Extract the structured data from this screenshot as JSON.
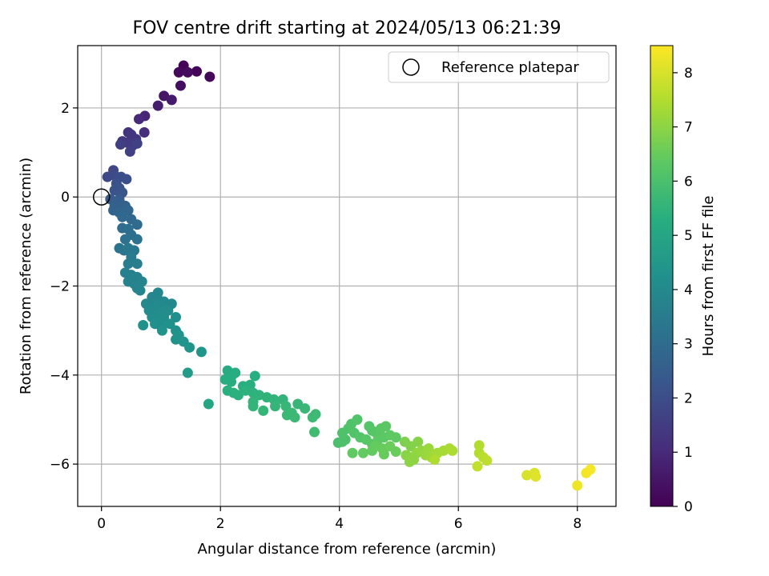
{
  "chart_data": {
    "type": "scatter",
    "title": "FOV centre drift starting at 2024/05/13 06:21:39",
    "xlabel": "Angular distance from reference (arcmin)",
    "ylabel": "Rotation from reference (arcmin)",
    "xlim": [
      -0.4,
      8.65
    ],
    "ylim": [
      -6.95,
      3.4
    ],
    "xticks": [
      0,
      2,
      4,
      6,
      8
    ],
    "yticks": [
      -6,
      -4,
      -2,
      0,
      2
    ],
    "grid": true,
    "legend": {
      "placement": "top-right",
      "entries": [
        "Reference platepar"
      ]
    },
    "reference_point": {
      "x": 0,
      "y": 0,
      "marker": "open-circle"
    },
    "colorbar": {
      "label": "Hours from first FF file",
      "colormap": "viridis",
      "range": [
        0,
        8.5
      ],
      "ticks": [
        0,
        1,
        2,
        3,
        4,
        5,
        6,
        7,
        8
      ]
    },
    "points": [
      {
        "x": 1.38,
        "y": 2.95,
        "c": 0.05
      },
      {
        "x": 1.6,
        "y": 2.82,
        "c": 0.1
      },
      {
        "x": 1.82,
        "y": 2.7,
        "c": 0.15
      },
      {
        "x": 1.3,
        "y": 2.8,
        "c": 0.2
      },
      {
        "x": 1.45,
        "y": 2.8,
        "c": 0.25
      },
      {
        "x": 1.33,
        "y": 2.5,
        "c": 0.3
      },
      {
        "x": 1.05,
        "y": 2.27,
        "c": 0.5
      },
      {
        "x": 1.18,
        "y": 2.18,
        "c": 0.6
      },
      {
        "x": 0.95,
        "y": 2.05,
        "c": 0.7
      },
      {
        "x": 0.73,
        "y": 1.82,
        "c": 0.9
      },
      {
        "x": 0.63,
        "y": 1.75,
        "c": 1.0
      },
      {
        "x": 0.72,
        "y": 1.45,
        "c": 1.1
      },
      {
        "x": 0.45,
        "y": 1.45,
        "c": 1.2
      },
      {
        "x": 0.5,
        "y": 1.4,
        "c": 1.3
      },
      {
        "x": 0.58,
        "y": 1.3,
        "c": 1.35
      },
      {
        "x": 0.35,
        "y": 1.25,
        "c": 1.4
      },
      {
        "x": 0.43,
        "y": 1.22,
        "c": 1.45
      },
      {
        "x": 0.52,
        "y": 1.15,
        "c": 1.5
      },
      {
        "x": 0.32,
        "y": 1.18,
        "c": 1.55
      },
      {
        "x": 0.48,
        "y": 1.02,
        "c": 1.6
      },
      {
        "x": 0.6,
        "y": 1.2,
        "c": 1.65
      },
      {
        "x": 0.2,
        "y": 0.6,
        "c": 1.8
      },
      {
        "x": 0.1,
        "y": 0.45,
        "c": 1.9
      },
      {
        "x": 0.22,
        "y": 0.48,
        "c": 1.95
      },
      {
        "x": 0.33,
        "y": 0.45,
        "c": 2.0
      },
      {
        "x": 0.42,
        "y": 0.4,
        "c": 2.05
      },
      {
        "x": 0.25,
        "y": 0.3,
        "c": 2.1
      },
      {
        "x": 0.3,
        "y": 0.2,
        "c": 2.15
      },
      {
        "x": 0.22,
        "y": 0.15,
        "c": 2.2
      },
      {
        "x": 0.35,
        "y": 0.1,
        "c": 2.25
      },
      {
        "x": 0.3,
        "y": -0.05,
        "c": 2.4
      },
      {
        "x": 0.15,
        "y": -0.05,
        "c": 2.45
      },
      {
        "x": 0.25,
        "y": -0.1,
        "c": 2.5
      },
      {
        "x": 0.32,
        "y": -0.15,
        "c": 2.55
      },
      {
        "x": 0.22,
        "y": -0.2,
        "c": 2.6
      },
      {
        "x": 0.4,
        "y": -0.2,
        "c": 2.65
      },
      {
        "x": 0.2,
        "y": -0.3,
        "c": 2.7
      },
      {
        "x": 0.3,
        "y": -0.35,
        "c": 2.75
      },
      {
        "x": 0.45,
        "y": -0.3,
        "c": 2.8
      },
      {
        "x": 0.35,
        "y": -0.45,
        "c": 2.85
      },
      {
        "x": 0.5,
        "y": -0.5,
        "c": 2.9
      },
      {
        "x": 0.6,
        "y": -0.62,
        "c": 2.95
      },
      {
        "x": 0.35,
        "y": -0.7,
        "c": 3.0
      },
      {
        "x": 0.45,
        "y": -0.72,
        "c": 3.05
      },
      {
        "x": 0.5,
        "y": -0.85,
        "c": 3.1
      },
      {
        "x": 0.4,
        "y": -0.95,
        "c": 3.15
      },
      {
        "x": 0.6,
        "y": -0.95,
        "c": 3.2
      },
      {
        "x": 0.3,
        "y": -1.15,
        "c": 3.25
      },
      {
        "x": 0.38,
        "y": -1.2,
        "c": 3.3
      },
      {
        "x": 0.45,
        "y": -1.15,
        "c": 3.35
      },
      {
        "x": 0.55,
        "y": -1.2,
        "c": 3.4
      },
      {
        "x": 0.5,
        "y": -1.35,
        "c": 3.5
      },
      {
        "x": 0.45,
        "y": -1.5,
        "c": 3.55
      },
      {
        "x": 0.6,
        "y": -1.5,
        "c": 3.6
      },
      {
        "x": 0.4,
        "y": -1.7,
        "c": 3.65
      },
      {
        "x": 0.5,
        "y": -1.75,
        "c": 3.7
      },
      {
        "x": 0.6,
        "y": -1.8,
        "c": 3.72
      },
      {
        "x": 0.45,
        "y": -1.9,
        "c": 3.75
      },
      {
        "x": 0.55,
        "y": -1.95,
        "c": 3.78
      },
      {
        "x": 0.68,
        "y": -1.9,
        "c": 3.8
      },
      {
        "x": 0.6,
        "y": -2.05,
        "c": 3.82
      },
      {
        "x": 0.65,
        "y": -2.1,
        "c": 3.84
      },
      {
        "x": 0.95,
        "y": -2.15,
        "c": 3.86
      },
      {
        "x": 0.85,
        "y": -2.25,
        "c": 3.88
      },
      {
        "x": 0.95,
        "y": -2.3,
        "c": 3.9
      },
      {
        "x": 1.05,
        "y": -2.35,
        "c": 3.92
      },
      {
        "x": 0.75,
        "y": -2.4,
        "c": 3.94
      },
      {
        "x": 0.88,
        "y": -2.4,
        "c": 3.96
      },
      {
        "x": 1.18,
        "y": -2.4,
        "c": 3.98
      },
      {
        "x": 0.95,
        "y": -2.45,
        "c": 4.0
      },
      {
        "x": 1.05,
        "y": -2.5,
        "c": 4.02
      },
      {
        "x": 0.8,
        "y": -2.55,
        "c": 4.04
      },
      {
        "x": 0.9,
        "y": -2.6,
        "c": 4.06
      },
      {
        "x": 1.0,
        "y": -2.6,
        "c": 4.08
      },
      {
        "x": 1.12,
        "y": -2.55,
        "c": 4.1
      },
      {
        "x": 0.85,
        "y": -2.7,
        "c": 4.12
      },
      {
        "x": 0.95,
        "y": -2.75,
        "c": 4.14
      },
      {
        "x": 1.05,
        "y": -2.7,
        "c": 4.16
      },
      {
        "x": 1.25,
        "y": -2.7,
        "c": 4.18
      },
      {
        "x": 0.9,
        "y": -2.85,
        "c": 4.2
      },
      {
        "x": 1.0,
        "y": -2.9,
        "c": 4.22
      },
      {
        "x": 0.7,
        "y": -2.88,
        "c": 4.24
      },
      {
        "x": 1.15,
        "y": -2.85,
        "c": 4.26
      },
      {
        "x": 1.02,
        "y": -3.0,
        "c": 4.28
      },
      {
        "x": 1.25,
        "y": -3.0,
        "c": 4.3
      },
      {
        "x": 1.3,
        "y": -3.1,
        "c": 4.32
      },
      {
        "x": 1.25,
        "y": -3.2,
        "c": 4.34
      },
      {
        "x": 1.38,
        "y": -3.25,
        "c": 4.36
      },
      {
        "x": 1.48,
        "y": -3.38,
        "c": 4.38
      },
      {
        "x": 1.68,
        "y": -3.48,
        "c": 4.4
      },
      {
        "x": 1.45,
        "y": -3.95,
        "c": 4.6
      },
      {
        "x": 1.8,
        "y": -4.65,
        "c": 5.0
      },
      {
        "x": 2.12,
        "y": -3.9,
        "c": 5.2
      },
      {
        "x": 2.2,
        "y": -4.0,
        "c": 5.22
      },
      {
        "x": 2.25,
        "y": -3.95,
        "c": 5.24
      },
      {
        "x": 2.08,
        "y": -4.1,
        "c": 5.26
      },
      {
        "x": 2.18,
        "y": -4.15,
        "c": 5.28
      },
      {
        "x": 2.58,
        "y": -4.02,
        "c": 5.3
      },
      {
        "x": 2.38,
        "y": -4.25,
        "c": 5.32
      },
      {
        "x": 2.5,
        "y": -4.22,
        "c": 5.34
      },
      {
        "x": 2.12,
        "y": -4.35,
        "c": 5.36
      },
      {
        "x": 2.22,
        "y": -4.4,
        "c": 5.38
      },
      {
        "x": 2.3,
        "y": -4.45,
        "c": 5.4
      },
      {
        "x": 2.42,
        "y": -4.35,
        "c": 5.42
      },
      {
        "x": 2.55,
        "y": -4.4,
        "c": 5.44
      },
      {
        "x": 2.65,
        "y": -4.45,
        "c": 5.46
      },
      {
        "x": 2.78,
        "y": -4.5,
        "c": 5.48
      },
      {
        "x": 2.9,
        "y": -4.55,
        "c": 5.5
      },
      {
        "x": 3.05,
        "y": -4.55,
        "c": 5.52
      },
      {
        "x": 2.55,
        "y": -4.6,
        "c": 5.54
      },
      {
        "x": 2.55,
        "y": -4.7,
        "c": 5.56
      },
      {
        "x": 2.72,
        "y": -4.8,
        "c": 5.58
      },
      {
        "x": 2.92,
        "y": -4.7,
        "c": 5.6
      },
      {
        "x": 3.1,
        "y": -4.7,
        "c": 5.62
      },
      {
        "x": 3.3,
        "y": -4.65,
        "c": 5.64
      },
      {
        "x": 3.42,
        "y": -4.75,
        "c": 5.66
      },
      {
        "x": 3.2,
        "y": -4.85,
        "c": 5.68
      },
      {
        "x": 3.12,
        "y": -4.9,
        "c": 5.7
      },
      {
        "x": 3.25,
        "y": -4.95,
        "c": 5.72
      },
      {
        "x": 3.6,
        "y": -4.88,
        "c": 5.74
      },
      {
        "x": 3.55,
        "y": -4.95,
        "c": 5.76
      },
      {
        "x": 3.58,
        "y": -5.28,
        "c": 5.8
      },
      {
        "x": 3.98,
        "y": -5.52,
        "c": 6.0
      },
      {
        "x": 4.05,
        "y": -5.5,
        "c": 6.02
      },
      {
        "x": 4.1,
        "y": -5.45,
        "c": 6.04
      },
      {
        "x": 4.05,
        "y": -5.3,
        "c": 6.06
      },
      {
        "x": 4.15,
        "y": -5.2,
        "c": 6.08
      },
      {
        "x": 4.2,
        "y": -5.1,
        "c": 6.1
      },
      {
        "x": 4.3,
        "y": -5.0,
        "c": 6.12
      },
      {
        "x": 4.25,
        "y": -5.3,
        "c": 6.14
      },
      {
        "x": 4.35,
        "y": -5.4,
        "c": 6.16
      },
      {
        "x": 4.5,
        "y": -5.15,
        "c": 6.18
      },
      {
        "x": 4.55,
        "y": -5.25,
        "c": 6.2
      },
      {
        "x": 4.62,
        "y": -5.3,
        "c": 6.22
      },
      {
        "x": 4.45,
        "y": -5.45,
        "c": 6.24
      },
      {
        "x": 4.55,
        "y": -5.55,
        "c": 6.26
      },
      {
        "x": 4.7,
        "y": -5.2,
        "c": 6.28
      },
      {
        "x": 4.78,
        "y": -5.15,
        "c": 6.3
      },
      {
        "x": 4.65,
        "y": -5.45,
        "c": 6.32
      },
      {
        "x": 4.75,
        "y": -5.4,
        "c": 6.34
      },
      {
        "x": 4.85,
        "y": -5.35,
        "c": 6.36
      },
      {
        "x": 4.95,
        "y": -5.4,
        "c": 6.38
      },
      {
        "x": 4.22,
        "y": -5.75,
        "c": 6.4
      },
      {
        "x": 4.4,
        "y": -5.75,
        "c": 6.42
      },
      {
        "x": 4.55,
        "y": -5.7,
        "c": 6.44
      },
      {
        "x": 4.6,
        "y": -5.6,
        "c": 6.46
      },
      {
        "x": 4.72,
        "y": -5.65,
        "c": 6.48
      },
      {
        "x": 4.75,
        "y": -5.78,
        "c": 6.5
      },
      {
        "x": 4.85,
        "y": -5.6,
        "c": 6.52
      },
      {
        "x": 4.95,
        "y": -5.72,
        "c": 6.54
      },
      {
        "x": 5.1,
        "y": -5.5,
        "c": 6.8
      },
      {
        "x": 5.2,
        "y": -5.6,
        "c": 6.85
      },
      {
        "x": 5.32,
        "y": -5.5,
        "c": 6.9
      },
      {
        "x": 5.12,
        "y": -5.8,
        "c": 6.95
      },
      {
        "x": 5.2,
        "y": -5.85,
        "c": 7.0
      },
      {
        "x": 5.3,
        "y": -5.75,
        "c": 7.05
      },
      {
        "x": 5.38,
        "y": -5.7,
        "c": 7.1
      },
      {
        "x": 5.45,
        "y": -5.8,
        "c": 7.15
      },
      {
        "x": 5.5,
        "y": -5.65,
        "c": 7.2
      },
      {
        "x": 5.55,
        "y": -5.85,
        "c": 7.25
      },
      {
        "x": 5.65,
        "y": -5.75,
        "c": 7.3
      },
      {
        "x": 5.75,
        "y": -5.7,
        "c": 7.35
      },
      {
        "x": 5.85,
        "y": -5.65,
        "c": 7.4
      },
      {
        "x": 5.9,
        "y": -5.7,
        "c": 7.42
      },
      {
        "x": 5.18,
        "y": -5.95,
        "c": 7.0
      },
      {
        "x": 5.25,
        "y": -5.9,
        "c": 7.02
      },
      {
        "x": 5.6,
        "y": -5.9,
        "c": 7.45
      },
      {
        "x": 6.35,
        "y": -5.58,
        "c": 7.5
      },
      {
        "x": 6.35,
        "y": -5.75,
        "c": 7.55
      },
      {
        "x": 6.42,
        "y": -5.85,
        "c": 7.6
      },
      {
        "x": 6.48,
        "y": -5.92,
        "c": 7.65
      },
      {
        "x": 6.32,
        "y": -6.05,
        "c": 7.7
      },
      {
        "x": 7.15,
        "y": -6.25,
        "c": 8.0
      },
      {
        "x": 7.28,
        "y": -6.2,
        "c": 8.05
      },
      {
        "x": 7.3,
        "y": -6.28,
        "c": 8.1
      },
      {
        "x": 8.0,
        "y": -6.48,
        "c": 8.3
      },
      {
        "x": 8.15,
        "y": -6.2,
        "c": 8.35
      },
      {
        "x": 8.22,
        "y": -6.12,
        "c": 8.4
      }
    ]
  }
}
